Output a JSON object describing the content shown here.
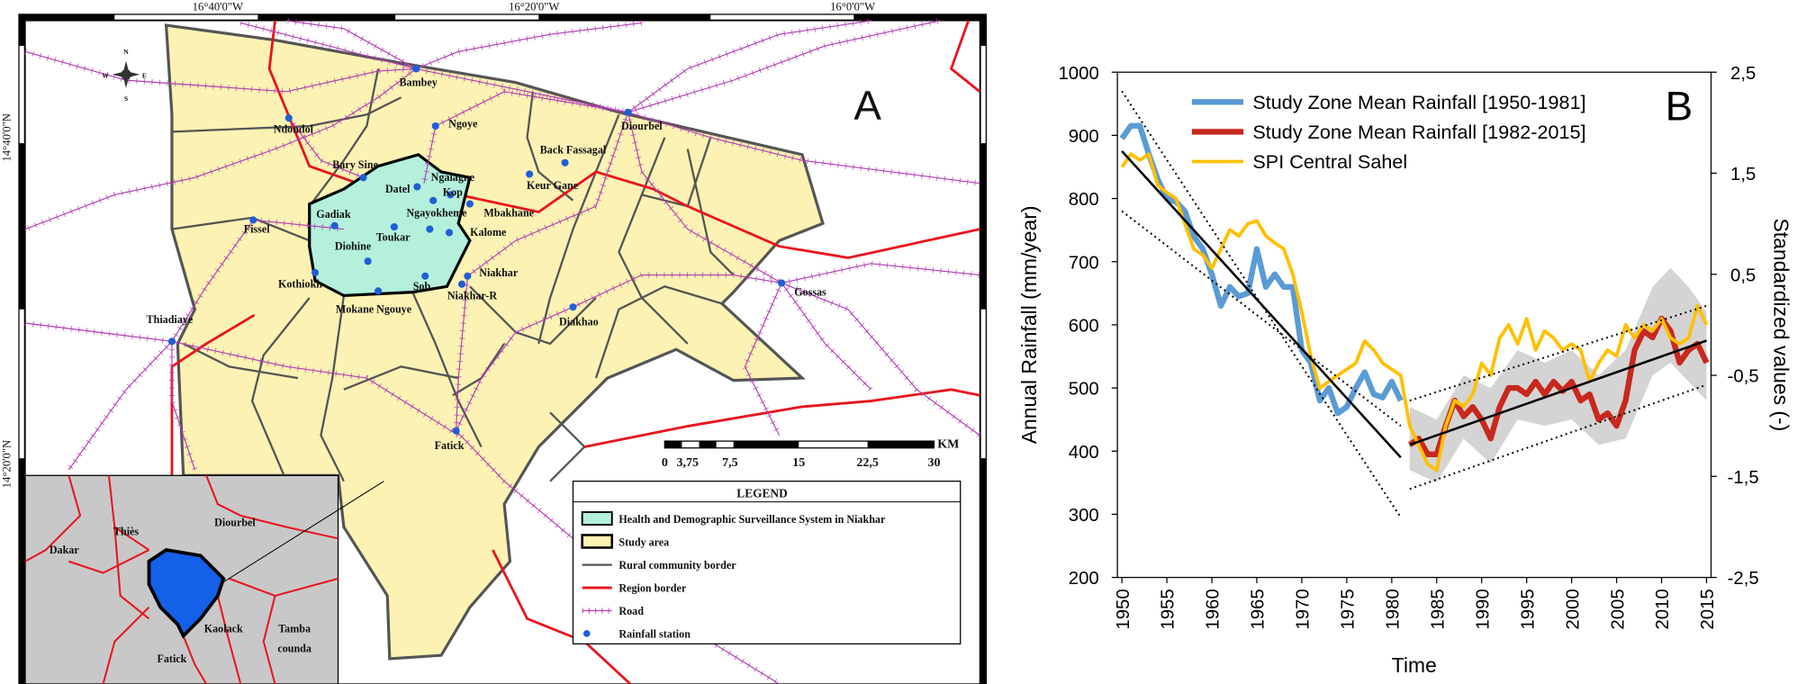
{
  "map": {
    "panel_label": "A",
    "coordinates": {
      "longitude": [
        "16°40'0\"W",
        "16°20'0\"W",
        "16°0'0\"W"
      ],
      "latitude": [
        "14°40'0\"N",
        "14°20'0\"N"
      ]
    },
    "compass": [
      "N",
      "E",
      "S",
      "W"
    ],
    "places": [
      "Bambey",
      "Ndondol",
      "Ngoye",
      "Diourbel",
      "Back Fassagal",
      "Keur Gane",
      "Bary Sine",
      "Datel",
      "Ngalagne",
      "Kop",
      "Mbakhane",
      "Fissel",
      "Gadiak",
      "Ngayokheme",
      "Kalome",
      "Diohine",
      "Toukar",
      "Niakhar",
      "Kothiokh",
      "Sob",
      "Niakhar-R",
      "Mokane Ngouye",
      "Diakhao",
      "Gossas",
      "Thiadiaye",
      "Fatick"
    ],
    "scale_bar": {
      "ticks": [
        "0",
        "3,75",
        "7,5",
        "15",
        "22,5",
        "30"
      ],
      "unit": "KM"
    },
    "legend": {
      "title": "LEGEND",
      "items": [
        "Health and Demographic Surveillance System in Niakhar",
        "Study area",
        "Rural community border",
        "Region border",
        "Road",
        "Rainfall station"
      ]
    },
    "inset": {
      "labels": [
        "Dakar",
        "Thiès",
        "Diourbel",
        "Kaolack",
        "Fatick"
      ],
      "tamba": [
        "Tamba",
        "counda"
      ]
    }
  },
  "chart_data": {
    "type": "line",
    "title": "B",
    "x_label": "Time",
    "y_label": "Annual Rainfall (mm/year)",
    "y2_label": "Standardized values (-)",
    "x": [
      1950,
      1951,
      1952,
      1953,
      1954,
      1955,
      1956,
      1957,
      1958,
      1959,
      1960,
      1961,
      1962,
      1963,
      1964,
      1965,
      1966,
      1967,
      1968,
      1969,
      1970,
      1971,
      1972,
      1973,
      1974,
      1975,
      1976,
      1977,
      1978,
      1979,
      1980,
      1981,
      1982,
      1983,
      1984,
      1985,
      1986,
      1987,
      1988,
      1989,
      1990,
      1991,
      1992,
      1993,
      1994,
      1995,
      1996,
      1997,
      1998,
      1999,
      2000,
      2001,
      2002,
      2003,
      2004,
      2005,
      2006,
      2007,
      2008,
      2009,
      2010,
      2011,
      2012,
      2013,
      2014,
      2015
    ],
    "xlim": [
      1949.5,
      2015.5
    ],
    "xticks": [
      1950,
      1955,
      1960,
      1965,
      1970,
      1975,
      1980,
      1985,
      1990,
      1995,
      2000,
      2005,
      2010,
      2015
    ],
    "ylim": [
      200,
      1000
    ],
    "yticks": [
      200,
      300,
      400,
      500,
      600,
      700,
      800,
      900,
      1000
    ],
    "y2lim": [
      -2.5,
      2.5
    ],
    "y2ticks": [
      {
        "value": 2.5,
        "label": "2,5"
      },
      {
        "value": 1.5,
        "label": "1,5"
      },
      {
        "value": 0.5,
        "label": "0,5"
      },
      {
        "value": -0.5,
        "label": "-0,5"
      },
      {
        "value": -1.5,
        "label": "-1,5"
      },
      {
        "value": -2.5,
        "label": "-2,5"
      }
    ],
    "series": [
      {
        "name": "Study Zone Mean Rainfall [1950-1981]",
        "color": "#5b9bd5",
        "values": [
          895,
          915,
          915,
          870,
          830,
          800,
          795,
          780,
          740,
          720,
          680,
          630,
          660,
          645,
          650,
          720,
          660,
          680,
          660,
          660,
          560,
          540,
          480,
          500,
          460,
          470,
          500,
          525,
          490,
          485,
          510,
          480,
          null,
          null,
          null,
          null,
          null,
          null,
          null,
          null,
          null,
          null,
          null,
          null,
          null,
          null,
          null,
          null,
          null,
          null,
          null,
          null,
          null,
          null,
          null,
          null,
          null,
          null,
          null,
          null,
          null,
          null,
          null,
          null,
          null,
          null
        ]
      },
      {
        "name": "Study Zone Mean Rainfall [1982-2015]",
        "color": "#c8281e",
        "values": [
          null,
          null,
          null,
          null,
          null,
          null,
          null,
          null,
          null,
          null,
          null,
          null,
          null,
          null,
          null,
          null,
          null,
          null,
          null,
          null,
          null,
          null,
          null,
          null,
          null,
          null,
          null,
          null,
          null,
          null,
          null,
          null,
          410,
          420,
          395,
          395,
          440,
          480,
          455,
          470,
          450,
          420,
          470,
          500,
          500,
          490,
          510,
          490,
          510,
          495,
          510,
          480,
          490,
          450,
          460,
          440,
          480,
          560,
          590,
          580,
          610,
          590,
          540,
          560,
          570,
          540
        ]
      },
      {
        "name": "SPI Central Sahel",
        "color": "#ffc000",
        "axis": "y2",
        "values": [
          1.56,
          1.69,
          1.63,
          1.69,
          1.38,
          1.31,
          1.25,
          1,
          0.75,
          0.69,
          0.56,
          0.75,
          0.94,
          0.88,
          1,
          1.03,
          0.88,
          0.81,
          0.75,
          0.5,
          0.13,
          -0.31,
          -0.63,
          -0.56,
          -0.5,
          -0.44,
          -0.38,
          -0.16,
          -0.25,
          -0.38,
          -0.44,
          -0.5,
          -1,
          -1.19,
          -1.38,
          -1.44,
          -1,
          -0.75,
          -0.81,
          -0.69,
          -0.38,
          -0.5,
          -0.13,
          0,
          -0.19,
          0.06,
          -0.25,
          -0.06,
          -0.13,
          -0.25,
          -0.19,
          -0.25,
          -0.56,
          -0.38,
          -0.25,
          -0.31,
          0,
          -0.13,
          0,
          -0.06,
          0.06,
          -0.13,
          -0.19,
          -0.13,
          0.19,
          0
        ]
      }
    ],
    "trend_lines": [
      {
        "x": [
          1950,
          1981
        ],
        "values": [
          875,
          390
        ],
        "style": "solid"
      },
      {
        "x": [
          1950,
          1981
        ],
        "values": [
          970,
          295
        ],
        "style": "dotted"
      },
      {
        "x": [
          1950,
          1981
        ],
        "values": [
          780,
          440
        ],
        "style": "dotted"
      },
      {
        "x": [
          1982,
          2015
        ],
        "values": [
          410,
          575
        ],
        "style": "solid"
      },
      {
        "x": [
          1982,
          2015
        ],
        "values": [
          480,
          630
        ],
        "style": "dotted"
      },
      {
        "x": [
          1982,
          2015
        ],
        "values": [
          340,
          505
        ],
        "style": "dotted"
      }
    ],
    "band": {
      "color": "#d4d4d4",
      "x": [
        1982,
        1985,
        1988,
        1991,
        1994,
        1997,
        2000,
        2003,
        2006,
        2009,
        2011,
        2013,
        2015
      ],
      "upper": [
        470,
        450,
        520,
        500,
        560,
        540,
        560,
        520,
        560,
        660,
        690,
        660,
        620
      ],
      "lower": [
        370,
        350,
        420,
        380,
        450,
        440,
        450,
        410,
        420,
        520,
        540,
        510,
        480
      ]
    }
  }
}
